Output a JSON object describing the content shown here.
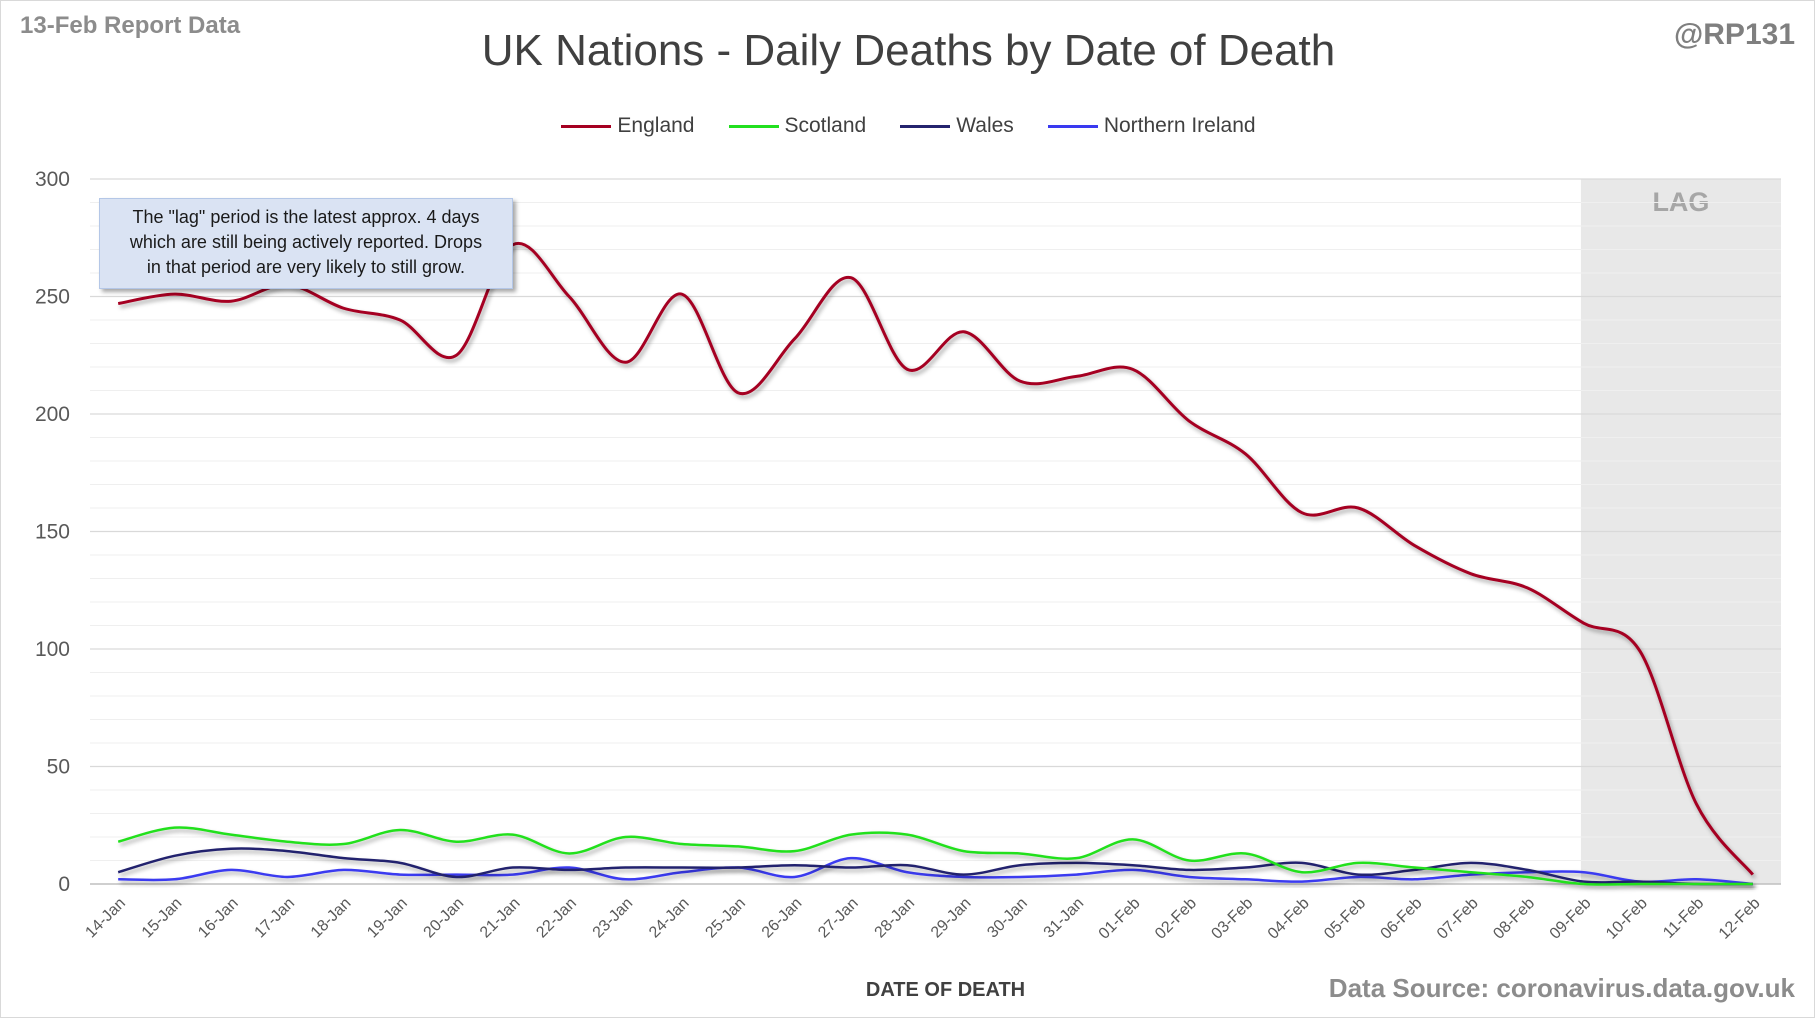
{
  "header": {
    "report_label": "13-Feb Report Data",
    "handle": "@RP131"
  },
  "footer": {
    "source": "Data Source: coronavirus.data.gov.uk"
  },
  "annotation": {
    "lines": [
      "The \"lag\" period is the latest approx. 4 days",
      "which are still being actively reported.  Drops",
      "in that period are very likely to still grow."
    ]
  },
  "colors": {
    "england": "#a50021",
    "scotland": "#22e01f",
    "wales": "#24236e",
    "northern_ireland": "#3a3af0",
    "lag_band": "#e8e8e8",
    "grid_major": "#d9d9d9",
    "grid_minor": "#efefef"
  },
  "chart_data": {
    "type": "line",
    "title": "UK Nations - Daily Deaths by Date of Death",
    "xlabel": "DATE OF DEATH",
    "ylabel": "",
    "ylim": [
      0,
      300
    ],
    "yticks": [
      0,
      50,
      100,
      150,
      200,
      250,
      300
    ],
    "grid": true,
    "smooth": true,
    "legend_position": "top",
    "categories": [
      "14-Jan",
      "15-Jan",
      "16-Jan",
      "17-Jan",
      "18-Jan",
      "19-Jan",
      "20-Jan",
      "21-Jan",
      "22-Jan",
      "23-Jan",
      "24-Jan",
      "25-Jan",
      "26-Jan",
      "27-Jan",
      "28-Jan",
      "29-Jan",
      "30-Jan",
      "31-Jan",
      "01-Feb",
      "02-Feb",
      "03-Feb",
      "04-Feb",
      "05-Feb",
      "06-Feb",
      "07-Feb",
      "08-Feb",
      "09-Feb",
      "10-Feb",
      "11-Feb",
      "12-Feb"
    ],
    "lag_region": {
      "from": "09-Feb",
      "to": "12-Feb",
      "label": "LAG"
    },
    "series": [
      {
        "name": "England",
        "color_key": "england",
        "values": [
          247,
          251,
          248,
          255,
          245,
          240,
          225,
          272,
          250,
          222,
          251,
          209,
          232,
          258,
          219,
          235,
          214,
          216,
          219,
          197,
          183,
          158,
          160,
          144,
          132,
          126,
          111,
          99,
          34,
          4
        ]
      },
      {
        "name": "Scotland",
        "color_key": "scotland",
        "values": [
          18,
          24,
          21,
          18,
          17,
          23,
          18,
          21,
          13,
          20,
          17,
          16,
          14,
          21,
          21,
          14,
          13,
          11,
          19,
          10,
          13,
          5,
          9,
          7,
          5,
          3,
          0,
          0,
          0,
          0
        ]
      },
      {
        "name": "Wales",
        "color_key": "wales",
        "values": [
          5,
          12,
          15,
          14,
          11,
          9,
          3,
          7,
          6,
          7,
          7,
          7,
          8,
          7,
          8,
          4,
          8,
          9,
          8,
          6,
          7,
          9,
          4,
          6,
          9,
          6,
          1,
          1,
          0,
          0
        ]
      },
      {
        "name": "Northern Ireland",
        "color_key": "northern_ireland",
        "values": [
          2,
          2,
          6,
          3,
          6,
          4,
          4,
          4,
          7,
          2,
          5,
          7,
          3,
          11,
          5,
          3,
          3,
          4,
          6,
          3,
          2,
          1,
          3,
          2,
          4,
          5,
          5,
          1,
          2,
          0
        ]
      }
    ]
  }
}
